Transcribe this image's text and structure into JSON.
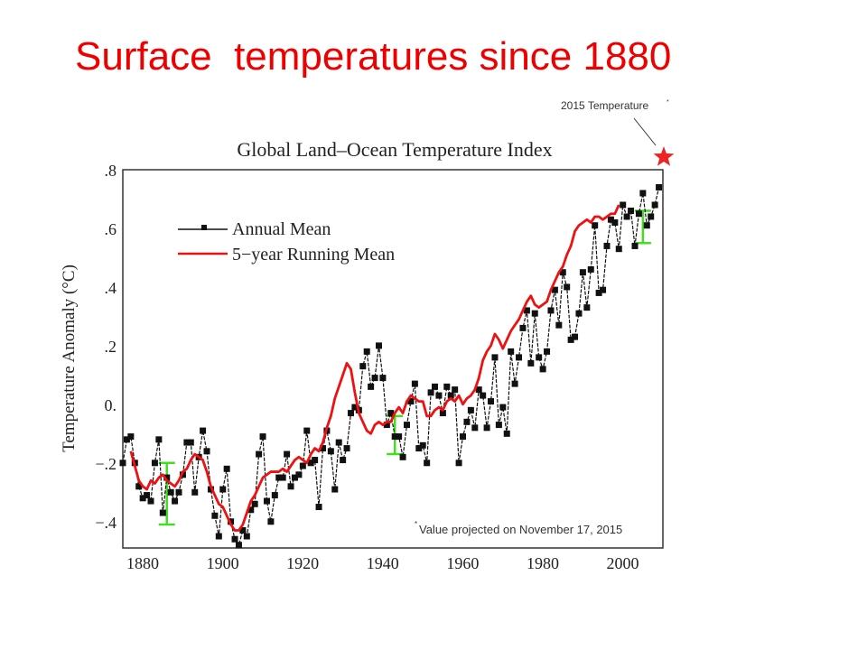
{
  "slide": {
    "title": "Surface  temperatures since 1880"
  },
  "annotation": {
    "star_label": "2015 Temperature",
    "star_label_mark": "*",
    "footnote_mark": "*",
    "footnote": "Value projected on November 17, 2015",
    "star_color": "#ee2222"
  },
  "chart_data": {
    "type": "line",
    "title": "Global Land–Ocean Temperature Index",
    "xlabel": "",
    "ylabel": "Temperature Anomaly (°C)",
    "xlim": [
      1880,
      2015
    ],
    "ylim": [
      -0.49,
      0.8
    ],
    "grid": false,
    "legend_position": "top-left",
    "x_ticks": [
      1880,
      1900,
      1920,
      1940,
      1960,
      1980,
      2000
    ],
    "x_tick_labels": [
      "1880",
      "1900",
      "1920",
      "1940",
      "1960",
      "1980",
      "2000"
    ],
    "y_ticks": [
      -0.4,
      -0.2,
      0.0,
      0.2,
      0.4,
      0.6,
      0.8
    ],
    "y_tick_labels": [
      "−.4",
      "−.2",
      "0.",
      ".2",
      ".4",
      ".6",
      ".8"
    ],
    "series": [
      {
        "name": "Annual Mean",
        "color": "#111111",
        "marker": "square",
        "x_start": 1880,
        "values": [
          -0.2,
          -0.12,
          -0.11,
          -0.2,
          -0.28,
          -0.32,
          -0.31,
          -0.33,
          -0.2,
          -0.12,
          -0.37,
          -0.25,
          -0.3,
          -0.33,
          -0.3,
          -0.24,
          -0.13,
          -0.13,
          -0.3,
          -0.18,
          -0.09,
          -0.16,
          -0.29,
          -0.38,
          -0.45,
          -0.29,
          -0.22,
          -0.4,
          -0.46,
          -0.48,
          -0.43,
          -0.45,
          -0.36,
          -0.34,
          -0.17,
          -0.11,
          -0.33,
          -0.4,
          -0.31,
          -0.25,
          -0.25,
          -0.17,
          -0.28,
          -0.25,
          -0.24,
          -0.21,
          -0.09,
          -0.2,
          -0.19,
          -0.35,
          -0.15,
          -0.09,
          -0.16,
          -0.29,
          -0.13,
          -0.19,
          -0.15,
          -0.03,
          -0.01,
          -0.02,
          0.13,
          0.18,
          0.06,
          0.09,
          0.2,
          0.09,
          -0.07,
          -0.03,
          -0.11,
          -0.11,
          -0.18,
          -0.07,
          0.01,
          0.07,
          -0.15,
          -0.14,
          -0.2,
          0.04,
          0.06,
          0.03,
          -0.03,
          0.06,
          0.03,
          0.05,
          -0.2,
          -0.11,
          -0.06,
          -0.02,
          -0.08,
          0.05,
          0.03,
          -0.08,
          0.01,
          0.16,
          -0.07,
          -0.01,
          -0.1,
          0.18,
          0.07,
          0.16,
          0.26,
          0.32,
          0.14,
          0.31,
          0.16,
          0.12,
          0.18,
          0.32,
          0.39,
          0.27,
          0.45,
          0.4,
          0.22,
          0.23,
          0.31,
          0.45,
          0.33,
          0.46,
          0.61,
          0.38,
          0.39,
          0.54,
          0.63,
          0.62,
          0.53,
          0.68,
          0.64,
          0.66,
          0.54,
          0.65,
          0.72,
          0.61,
          0.64,
          0.68,
          0.74,
          0.87
        ],
        "note": "2015 value (0.87) drawn as red star, projected"
      },
      {
        "name": "5−year Running Mean",
        "color": "#ee1111",
        "x_start": 1882,
        "values": [
          -0.16,
          -0.21,
          -0.26,
          -0.28,
          -0.29,
          -0.26,
          -0.27,
          -0.25,
          -0.24,
          -0.26,
          -0.27,
          -0.28,
          -0.26,
          -0.23,
          -0.22,
          -0.19,
          -0.17,
          -0.18,
          -0.19,
          -0.23,
          -0.28,
          -0.31,
          -0.34,
          -0.35,
          -0.38,
          -0.41,
          -0.43,
          -0.43,
          -0.41,
          -0.37,
          -0.33,
          -0.31,
          -0.28,
          -0.25,
          -0.24,
          -0.23,
          -0.23,
          -0.23,
          -0.22,
          -0.23,
          -0.21,
          -0.19,
          -0.18,
          -0.19,
          -0.2,
          -0.17,
          -0.15,
          -0.16,
          -0.13,
          -0.08,
          -0.04,
          0.02,
          0.06,
          0.1,
          0.14,
          0.12,
          0.04,
          -0.03,
          -0.06,
          -0.09,
          -0.1,
          -0.07,
          -0.06,
          -0.07,
          -0.06,
          -0.06,
          -0.03,
          -0.01,
          -0.03,
          0.01,
          0.03,
          0.02,
          0.01,
          0.01,
          -0.04,
          -0.04,
          -0.02,
          -0.01,
          -0.02,
          0.01,
          0.02,
          0.01,
          0.03,
          0.0,
          0.02,
          0.03,
          0.05,
          0.09,
          0.15,
          0.18,
          0.2,
          0.24,
          0.22,
          0.19,
          0.22,
          0.25,
          0.27,
          0.29,
          0.32,
          0.35,
          0.37,
          0.34,
          0.33,
          0.34,
          0.35,
          0.39,
          0.42,
          0.45,
          0.47,
          0.51,
          0.54,
          0.59,
          0.61,
          0.62,
          0.63,
          0.62,
          0.64,
          0.64,
          0.63,
          0.64,
          0.65,
          0.65,
          0.68
        ]
      }
    ],
    "uncertainty_bars": [
      {
        "x": 1891,
        "low": -0.41,
        "high": -0.2,
        "color": "#44dd22"
      },
      {
        "x": 1948,
        "low": -0.17,
        "high": -0.04,
        "color": "#44dd22"
      },
      {
        "x": 2010,
        "low": 0.55,
        "high": 0.66,
        "color": "#44dd22"
      }
    ],
    "highlight": {
      "x": 2015,
      "y": 0.87,
      "label": "2015 Temperature",
      "marker": "star"
    }
  }
}
